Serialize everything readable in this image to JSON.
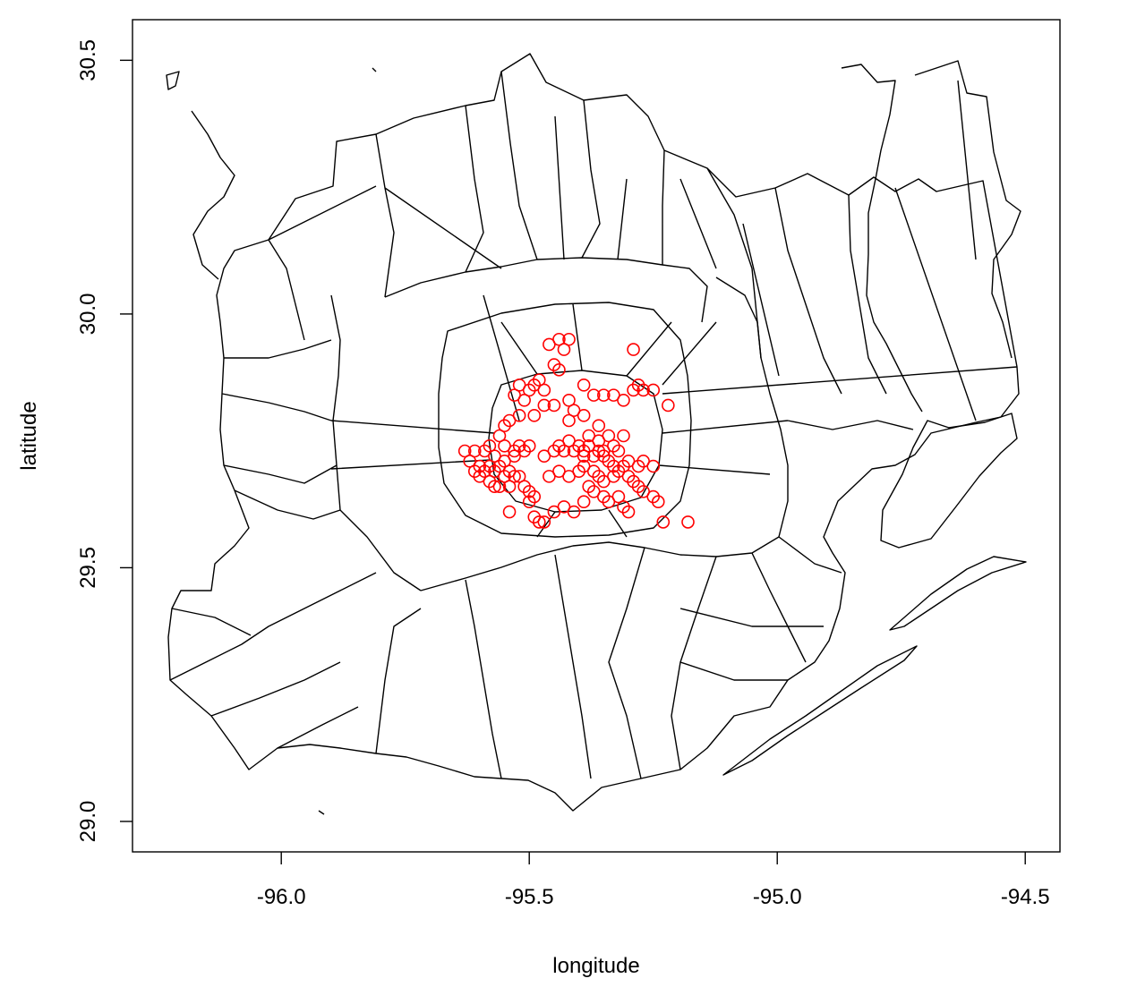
{
  "chart_data": {
    "type": "scatter",
    "title": "",
    "xlabel": "longitude",
    "ylabel": "latitude",
    "xlim": [
      -96.3,
      -94.43
    ],
    "ylim": [
      28.94,
      30.58
    ],
    "x_ticks": [
      -96.0,
      -95.5,
      -95.0,
      -94.5
    ],
    "x_tick_labels": [
      "-96.0",
      "-95.5",
      "-95.0",
      "-94.5"
    ],
    "y_ticks": [
      29.0,
      29.5,
      30.0,
      30.5
    ],
    "y_tick_labels": [
      "29.0",
      "29.5",
      "30.0",
      "30.5"
    ],
    "grid": false,
    "legend": "none",
    "background_map": "zip code boundary outlines",
    "map_color": "#000000",
    "marker": "open circle",
    "marker_color": "#ff0000",
    "series": [
      {
        "points": [
          [
            -95.44,
            29.95
          ],
          [
            -95.46,
            29.94
          ],
          [
            -95.42,
            29.95
          ],
          [
            -95.43,
            29.93
          ],
          [
            -95.29,
            29.93
          ],
          [
            -95.45,
            29.9
          ],
          [
            -95.44,
            29.89
          ],
          [
            -95.48,
            29.87
          ],
          [
            -95.52,
            29.86
          ],
          [
            -95.49,
            29.86
          ],
          [
            -95.47,
            29.85
          ],
          [
            -95.5,
            29.85
          ],
          [
            -95.53,
            29.84
          ],
          [
            -95.51,
            29.83
          ],
          [
            -95.39,
            29.86
          ],
          [
            -95.37,
            29.84
          ],
          [
            -95.35,
            29.84
          ],
          [
            -95.33,
            29.84
          ],
          [
            -95.31,
            29.83
          ],
          [
            -95.29,
            29.85
          ],
          [
            -95.28,
            29.86
          ],
          [
            -95.27,
            29.85
          ],
          [
            -95.25,
            29.85
          ],
          [
            -95.22,
            29.82
          ],
          [
            -95.42,
            29.83
          ],
          [
            -95.41,
            29.81
          ],
          [
            -95.45,
            29.82
          ],
          [
            -95.47,
            29.82
          ],
          [
            -95.49,
            29.8
          ],
          [
            -95.52,
            29.8
          ],
          [
            -95.54,
            29.79
          ],
          [
            -95.55,
            29.78
          ],
          [
            -95.42,
            29.79
          ],
          [
            -95.39,
            29.8
          ],
          [
            -95.36,
            29.78
          ],
          [
            -95.34,
            29.76
          ],
          [
            -95.31,
            29.76
          ],
          [
            -95.56,
            29.76
          ],
          [
            -95.63,
            29.73
          ],
          [
            -95.61,
            29.73
          ],
          [
            -95.59,
            29.73
          ],
          [
            -95.57,
            29.72
          ],
          [
            -95.55,
            29.74
          ],
          [
            -95.53,
            29.73
          ],
          [
            -95.52,
            29.74
          ],
          [
            -95.5,
            29.74
          ],
          [
            -95.51,
            29.73
          ],
          [
            -95.53,
            29.72
          ],
          [
            -95.55,
            29.71
          ],
          [
            -95.44,
            29.74
          ],
          [
            -95.43,
            29.73
          ],
          [
            -95.42,
            29.75
          ],
          [
            -95.41,
            29.73
          ],
          [
            -95.4,
            29.74
          ],
          [
            -95.39,
            29.73
          ],
          [
            -95.38,
            29.74
          ],
          [
            -95.37,
            29.72
          ],
          [
            -95.36,
            29.73
          ],
          [
            -95.35,
            29.72
          ],
          [
            -95.34,
            29.71
          ],
          [
            -95.33,
            29.7
          ],
          [
            -95.31,
            29.7
          ],
          [
            -95.3,
            29.71
          ],
          [
            -95.28,
            29.7
          ],
          [
            -95.27,
            29.71
          ],
          [
            -95.25,
            29.7
          ],
          [
            -95.6,
            29.7
          ],
          [
            -95.61,
            29.69
          ],
          [
            -95.59,
            29.69
          ],
          [
            -95.58,
            29.7
          ],
          [
            -95.57,
            29.69
          ],
          [
            -95.56,
            29.7
          ],
          [
            -95.55,
            29.68
          ],
          [
            -95.54,
            29.69
          ],
          [
            -95.53,
            29.68
          ],
          [
            -95.6,
            29.68
          ],
          [
            -95.58,
            29.67
          ],
          [
            -95.56,
            29.66
          ],
          [
            -95.54,
            29.66
          ],
          [
            -95.52,
            29.68
          ],
          [
            -95.51,
            29.66
          ],
          [
            -95.5,
            29.65
          ],
          [
            -95.49,
            29.64
          ],
          [
            -95.46,
            29.68
          ],
          [
            -95.44,
            29.69
          ],
          [
            -95.42,
            29.68
          ],
          [
            -95.4,
            29.69
          ],
          [
            -95.39,
            29.7
          ],
          [
            -95.37,
            29.69
          ],
          [
            -95.36,
            29.68
          ],
          [
            -95.35,
            29.67
          ],
          [
            -95.33,
            29.68
          ],
          [
            -95.32,
            29.69
          ],
          [
            -95.3,
            29.68
          ],
          [
            -95.29,
            29.67
          ],
          [
            -95.28,
            29.66
          ],
          [
            -95.27,
            29.65
          ],
          [
            -95.25,
            29.64
          ],
          [
            -95.24,
            29.63
          ],
          [
            -95.38,
            29.66
          ],
          [
            -95.37,
            29.65
          ],
          [
            -95.35,
            29.64
          ],
          [
            -95.34,
            29.63
          ],
          [
            -95.32,
            29.64
          ],
          [
            -95.31,
            29.62
          ],
          [
            -95.3,
            29.61
          ],
          [
            -95.39,
            29.63
          ],
          [
            -95.43,
            29.62
          ],
          [
            -95.41,
            29.61
          ],
          [
            -95.45,
            29.61
          ],
          [
            -95.5,
            29.63
          ],
          [
            -95.54,
            29.61
          ],
          [
            -95.49,
            29.6
          ],
          [
            -95.47,
            29.59
          ],
          [
            -95.48,
            29.59
          ],
          [
            -95.23,
            29.59
          ],
          [
            -95.18,
            29.59
          ],
          [
            -95.35,
            29.73
          ],
          [
            -95.36,
            29.75
          ],
          [
            -95.38,
            29.76
          ],
          [
            -95.33,
            29.74
          ],
          [
            -95.32,
            29.73
          ],
          [
            -95.39,
            29.72
          ],
          [
            -95.45,
            29.73
          ],
          [
            -95.47,
            29.72
          ],
          [
            -95.58,
            29.74
          ],
          [
            -95.57,
            29.66
          ],
          [
            -95.62,
            29.71
          ]
        ]
      }
    ]
  }
}
